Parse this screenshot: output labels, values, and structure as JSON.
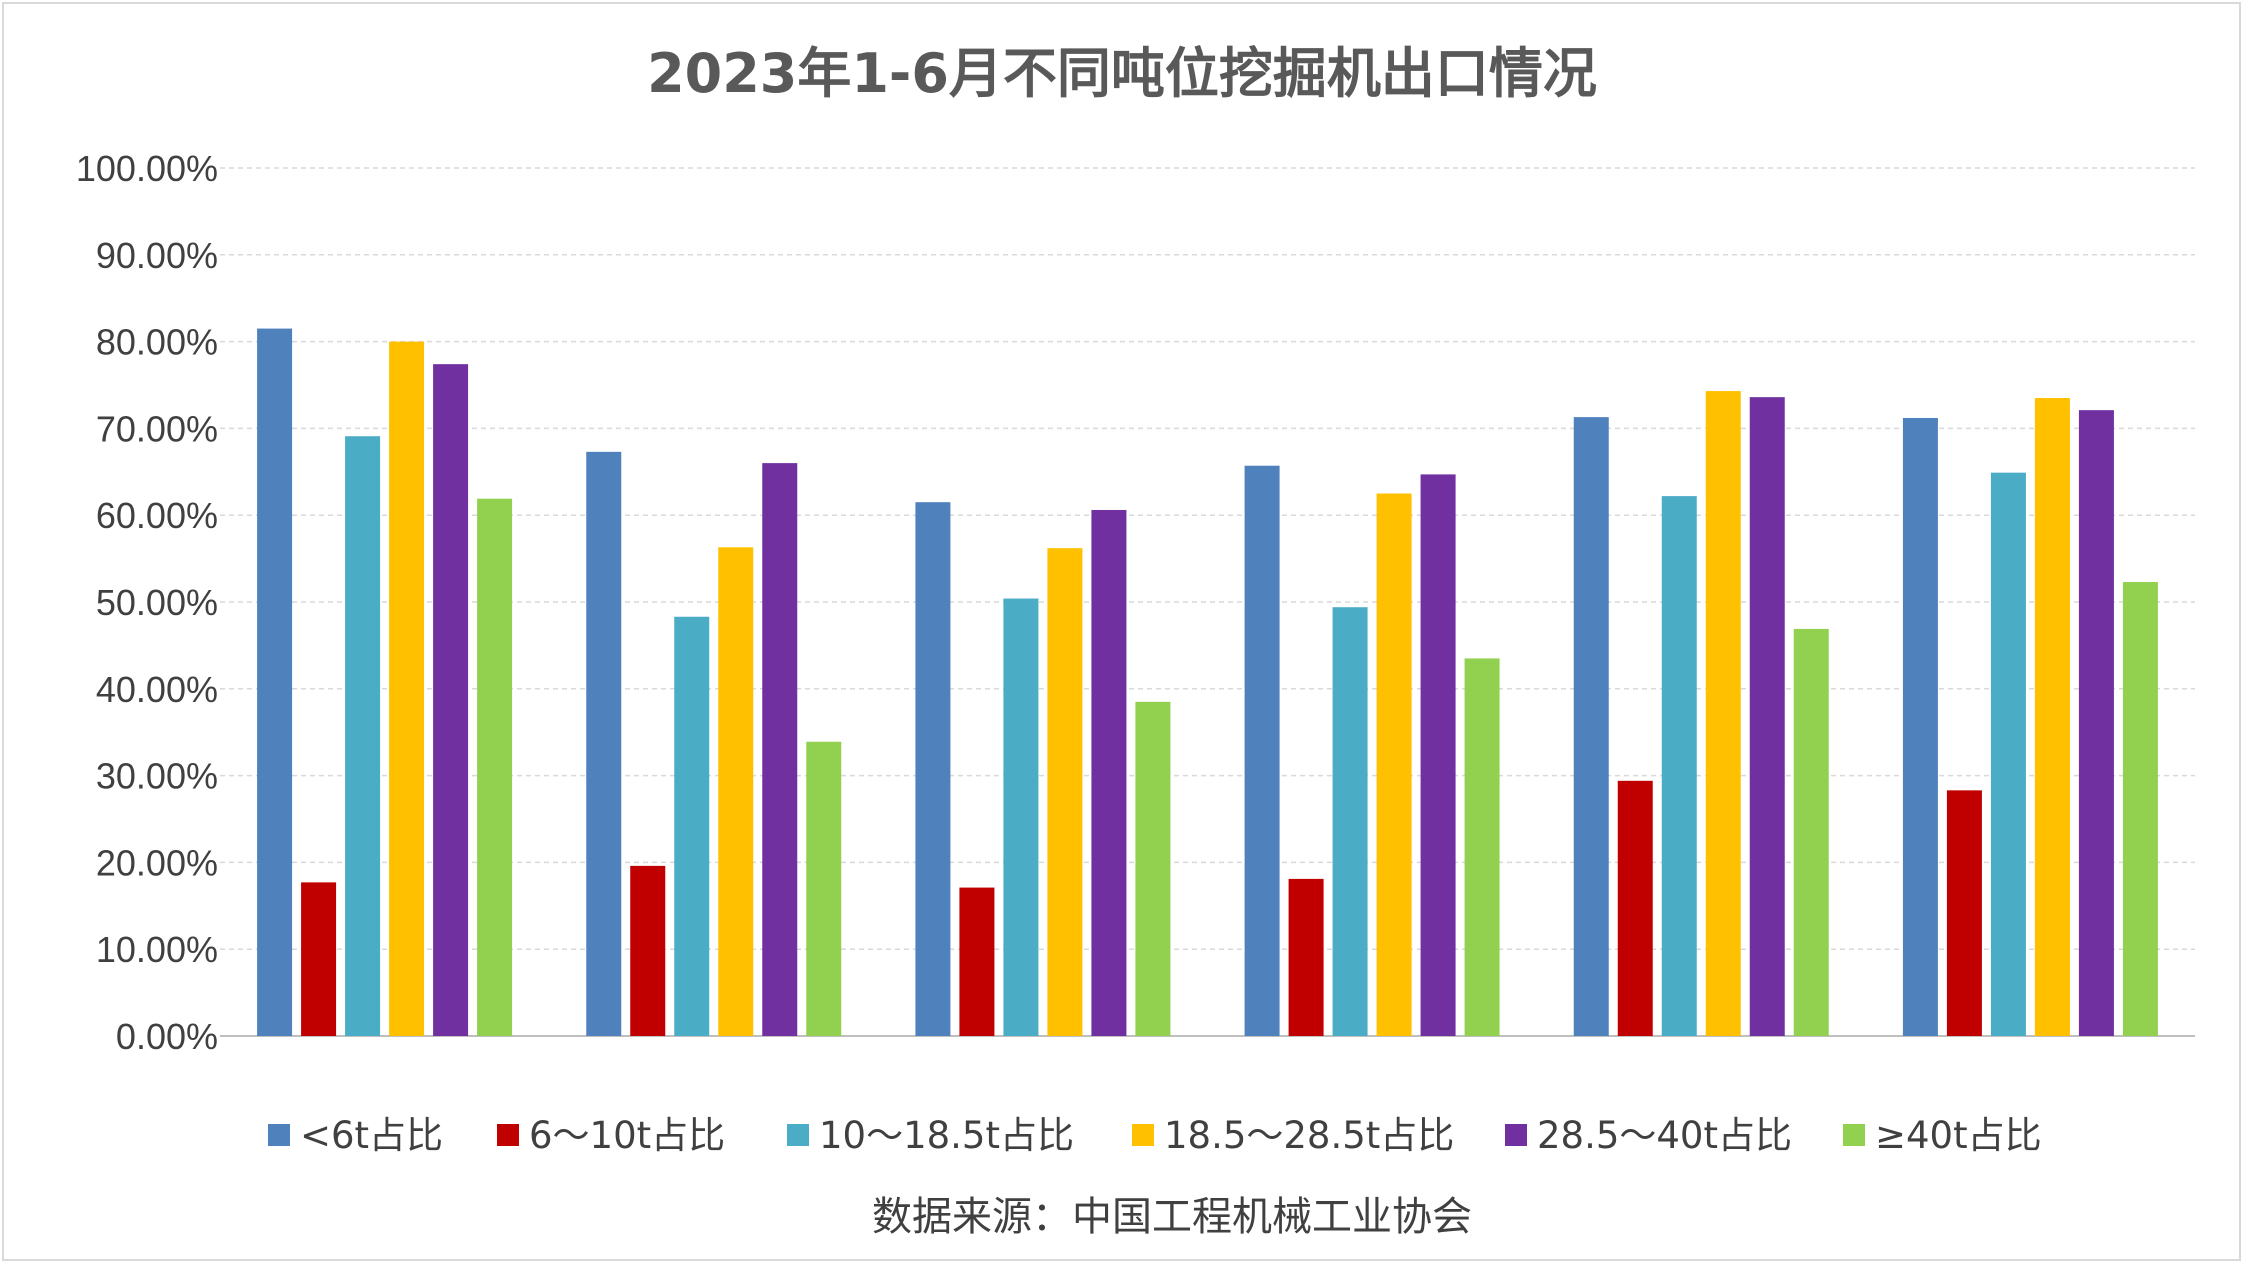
{
  "chart_data": {
    "type": "bar",
    "title": "2023年1-6月不同吨位挖掘机出口情况",
    "categories": [
      "",
      "",
      "",
      "",
      "",
      ""
    ],
    "series": [
      {
        "name": "<6t占比",
        "color": "#4F81BD",
        "values": [
          81.5,
          67.3,
          61.5,
          65.7,
          71.3,
          71.2
        ]
      },
      {
        "name": "6～10t占比",
        "color": "#C00000",
        "values": [
          17.7,
          19.6,
          17.1,
          18.1,
          29.4,
          28.3
        ]
      },
      {
        "name": "10～18.5t占比",
        "color": "#4BACC6",
        "values": [
          69.1,
          48.3,
          50.4,
          49.4,
          62.2,
          64.9
        ]
      },
      {
        "name": "18.5～28.5t占比",
        "color": "#FFC000",
        "values": [
          80.0,
          56.3,
          56.2,
          62.5,
          74.3,
          73.5
        ]
      },
      {
        "name": "28.5～40t占比",
        "color": "#7030A0",
        "values": [
          77.4,
          66.0,
          60.6,
          64.7,
          73.6,
          72.1
        ]
      },
      {
        "name": "≥40t占比",
        "color": "#92D050",
        "values": [
          61.9,
          33.9,
          38.5,
          43.5,
          46.9,
          52.3
        ]
      }
    ],
    "ylim": [
      0,
      100
    ],
    "yticks": [
      "0.00%",
      "10.00%",
      "20.00%",
      "30.00%",
      "40.00%",
      "50.00%",
      "60.00%",
      "70.00%",
      "80.00%",
      "90.00%",
      "100.00%"
    ],
    "grid": true,
    "legend": "bottom",
    "source": "数据来源：中国工程机械工业协会"
  }
}
